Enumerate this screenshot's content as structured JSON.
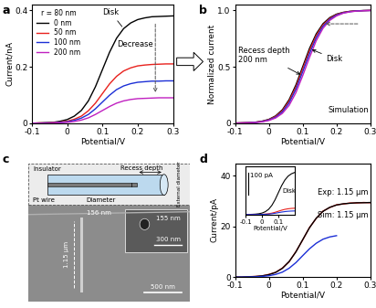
{
  "chart_data": [
    {
      "type": "line",
      "panel_label": "a",
      "xlabel": "Potential/V",
      "ylabel": "Current/nA",
      "xlim": [
        -0.1,
        0.3
      ],
      "xticks": [
        -0.1,
        0,
        0.1,
        0.2,
        0.3
      ],
      "ylim": [
        0,
        0.42
      ],
      "yticks": [
        0,
        0.2,
        0.4
      ],
      "legend": "upper left",
      "legend_title": "r = 80 nm",
      "annotations": [
        "Disk",
        "Decrease"
      ],
      "x": [
        -0.1,
        -0.08,
        -0.06,
        -0.04,
        -0.02,
        0,
        0.02,
        0.04,
        0.06,
        0.08,
        0.1,
        0.12,
        0.14,
        0.16,
        0.18,
        0.2,
        0.22,
        0.24,
        0.26,
        0.28,
        0.3
      ],
      "series": [
        {
          "name": "0 nm",
          "color": "#000000",
          "values": [
            0,
            0.001,
            0.002,
            0.003,
            0.007,
            0.013,
            0.025,
            0.045,
            0.079,
            0.129,
            0.19,
            0.251,
            0.301,
            0.335,
            0.355,
            0.367,
            0.373,
            0.377,
            0.378,
            0.379,
            0.38
          ]
        },
        {
          "name": "50 nm",
          "color": "#e8211d",
          "values": [
            0,
            0.001,
            0.001,
            0.002,
            0.004,
            0.007,
            0.014,
            0.025,
            0.044,
            0.071,
            0.105,
            0.139,
            0.166,
            0.185,
            0.196,
            0.203,
            0.206,
            0.208,
            0.209,
            0.21,
            0.21
          ]
        },
        {
          "name": "100 nm",
          "color": "#1c2fd6",
          "values": [
            0,
            0,
            0.001,
            0.001,
            0.003,
            0.005,
            0.01,
            0.018,
            0.031,
            0.051,
            0.075,
            0.099,
            0.119,
            0.132,
            0.14,
            0.145,
            0.147,
            0.149,
            0.149,
            0.15,
            0.15
          ]
        },
        {
          "name": "200 nm",
          "color": "#c020c0",
          "values": [
            0,
            0,
            0,
            0.001,
            0.002,
            0.003,
            0.006,
            0.011,
            0.019,
            0.031,
            0.045,
            0.059,
            0.071,
            0.079,
            0.084,
            0.087,
            0.088,
            0.089,
            0.09,
            0.09,
            0.09
          ]
        }
      ]
    },
    {
      "type": "line",
      "panel_label": "b",
      "xlabel": "Potential/V",
      "ylabel": "Normalized current",
      "xlim": [
        -0.1,
        0.3
      ],
      "xticks": [
        -0.1,
        0,
        0.1,
        0.2,
        0.3
      ],
      "ylim": [
        0,
        1.05
      ],
      "yticks": [
        0,
        0.5,
        1.0
      ],
      "annotations": [
        "Recess depth\n200 nm",
        "Disk",
        "Simulation"
      ],
      "x": [
        -0.1,
        -0.08,
        -0.06,
        -0.04,
        -0.02,
        0,
        0.02,
        0.04,
        0.06,
        0.08,
        0.1,
        0.12,
        0.14,
        0.16,
        0.18,
        0.2,
        0.22,
        0.24,
        0.26,
        0.28,
        0.3
      ],
      "series": [
        {
          "color": "#000000",
          "values": [
            0.001,
            0.003,
            0.005,
            0.009,
            0.018,
            0.034,
            0.065,
            0.119,
            0.209,
            0.339,
            0.5,
            0.661,
            0.791,
            0.881,
            0.935,
            0.966,
            0.982,
            0.991,
            0.995,
            0.998,
            0.999
          ]
        },
        {
          "color": "#e8211d",
          "values": [
            0.001,
            0.003,
            0.005,
            0.008,
            0.016,
            0.031,
            0.06,
            0.11,
            0.196,
            0.32,
            0.48,
            0.64,
            0.775,
            0.87,
            0.928,
            0.962,
            0.98,
            0.99,
            0.994,
            0.997,
            0.999
          ]
        },
        {
          "color": "#1c2fd6",
          "values": [
            0.001,
            0.002,
            0.004,
            0.007,
            0.014,
            0.028,
            0.053,
            0.1,
            0.18,
            0.3,
            0.455,
            0.615,
            0.755,
            0.857,
            0.92,
            0.957,
            0.977,
            0.988,
            0.994,
            0.997,
            0.998
          ]
        },
        {
          "color": "#c020c0",
          "values": [
            0.001,
            0.002,
            0.003,
            0.006,
            0.012,
            0.024,
            0.046,
            0.087,
            0.158,
            0.27,
            0.42,
            0.58,
            0.73,
            0.84,
            0.91,
            0.95,
            0.974,
            0.986,
            0.993,
            0.996,
            0.998
          ]
        }
      ]
    },
    {
      "type": "line",
      "panel_label": "d",
      "xlabel": "Potential/V",
      "ylabel": "Current/pA",
      "xlim": [
        -0.1,
        0.3
      ],
      "xticks": [
        -0.1,
        0,
        0.1,
        0.2,
        0.3
      ],
      "ylim": [
        0,
        45
      ],
      "yticks": [
        0,
        20,
        40
      ],
      "annotations": [
        "Exp: 1.15 µm",
        "Sim: 1.15 µm"
      ],
      "x": [
        -0.1,
        -0.08,
        -0.06,
        -0.04,
        -0.02,
        0,
        0.02,
        0.04,
        0.06,
        0.08,
        0.1,
        0.12,
        0.14,
        0.16,
        0.18,
        0.2,
        0.22,
        0.24,
        0.26,
        0.28,
        0.3
      ],
      "series": [
        {
          "color": "#e8211d",
          "values": [
            0.1,
            0.0,
            0.2,
            0.3,
            0.5,
            1.1,
            1.9,
            3.6,
            6.1,
            10.1,
            14.7,
            19.6,
            23.2,
            26.1,
            27.5,
            28.6,
            28.9,
            29.3,
            29.3,
            29.5,
            29.4
          ]
        },
        {
          "color": "#000000",
          "values": [
            0.04,
            0.07,
            0.15,
            0.27,
            0.53,
            1.0,
            1.9,
            3.5,
            6.2,
            10.0,
            14.8,
            19.5,
            23.3,
            26.0,
            27.6,
            28.5,
            29.0,
            29.2,
            29.4,
            29.4,
            29.5
          ]
        },
        {
          "color": "#1c2fd6",
          "values": [
            0.02,
            0.04,
            0.08,
            0.15,
            0.31,
            0.58,
            1.1,
            2.0,
            3.55,
            5.76,
            8.5,
            11.2,
            13.4,
            15.0,
            15.9,
            16.4,
            null,
            null,
            null,
            null,
            null
          ]
        }
      ],
      "inset": {
        "type": "line",
        "xlabel": "Potential/V",
        "xlim": [
          -0.1,
          0.2
        ],
        "xticks": [
          -0.1,
          0,
          0.1
        ],
        "ylim": [
          0,
          220
        ],
        "tick_labels": "x",
        "scale_bar": {
          "value": 100,
          "label": "100 pA"
        },
        "annotations": [
          "Disk"
        ],
        "x": [
          -0.1,
          -0.08,
          -0.06,
          -0.04,
          -0.02,
          0,
          0.02,
          0.04,
          0.06,
          0.08,
          0.1,
          0.12,
          0.14,
          0.16,
          0.18,
          0.2
        ],
        "series": [
          {
            "color": "#000000",
            "values": [
              0.2,
              0.5,
              1,
              1.9,
              3.6,
              6.8,
              13,
              23.8,
              41.8,
              67.8,
              100,
              132.2,
              158.2,
              176.2,
              187,
              193.2
            ]
          },
          {
            "color": "#e8211d",
            "values": [
              0,
              0.1,
              0.1,
              0.3,
              0.5,
              1,
              2,
              3.6,
              6.3,
              10.2,
              15,
              19.8,
              23.7,
              26.4,
              28,
              29
            ]
          },
          {
            "color": "#1c2fd6",
            "values": [
              0.02,
              0.04,
              0.08,
              0.15,
              0.31,
              0.58,
              1.1,
              2.0,
              3.55,
              5.76,
              8.5,
              11.2,
              13.4,
              15.0,
              15.9,
              16.4
            ]
          }
        ]
      }
    }
  ],
  "panel_c": {
    "panel_label": "c",
    "schematic": {
      "insulator": "Insulator",
      "wire": "Pt wire",
      "recess": "Recess depth",
      "diameter": "Diameter",
      "external": "External diameter"
    },
    "sem": {
      "width": "156 nm",
      "length": "1.15 µm",
      "scale_bar": "500 nm",
      "inset": {
        "width": "155 nm",
        "scale_bar": "300 nm"
      }
    }
  }
}
